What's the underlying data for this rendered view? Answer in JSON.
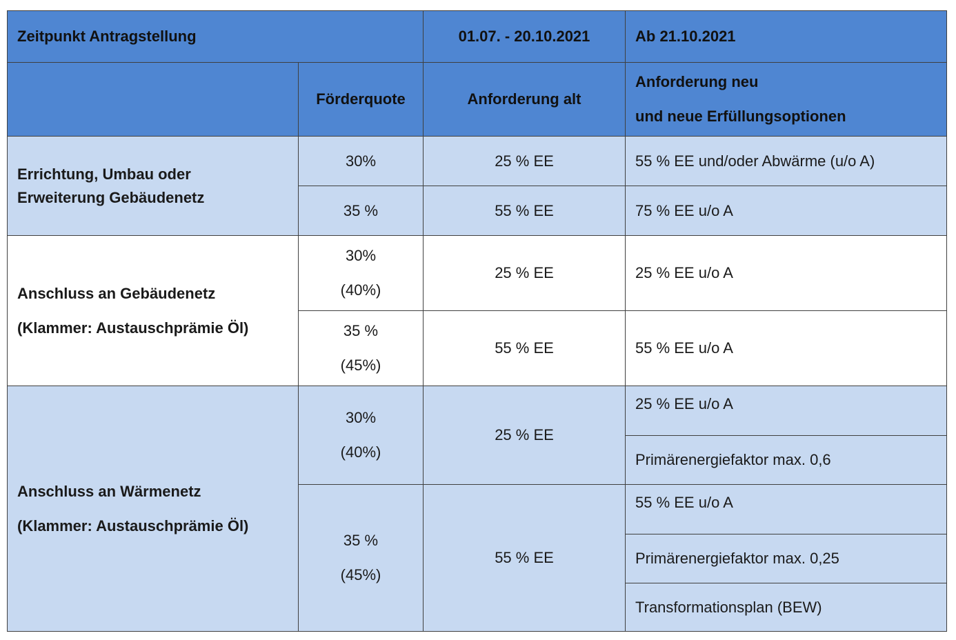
{
  "header": {
    "antrag": "Zeitpunkt Antragstellung",
    "period1": "01.07. - 20.10.2021",
    "period2": "Ab 21.10.2021",
    "quote": "Förderquote",
    "alt": "Anforderung alt",
    "neu_line1": "Anforderung neu",
    "neu_line2": "und neue Erfüllungsoptionen"
  },
  "rows": [
    {
      "label": [
        "Errichtung, Umbau oder",
        "Erweiterung Gebäudenetz"
      ],
      "entries": [
        {
          "quote": [
            "30%"
          ],
          "alt": "25 % EE",
          "neu": [
            "55 % EE und/oder Abwärme (u/o A)"
          ]
        },
        {
          "quote": [
            "35 %"
          ],
          "alt": "55 % EE",
          "neu": [
            "75 % EE u/o A"
          ]
        }
      ]
    },
    {
      "label": [
        "Anschluss an Gebäudenetz",
        "(Klammer: Austauschprämie Öl)"
      ],
      "entries": [
        {
          "quote": [
            "30%",
            "(40%)"
          ],
          "alt": "25 % EE",
          "neu": [
            "25 % EE u/o A"
          ]
        },
        {
          "quote": [
            "35 %",
            "(45%)"
          ],
          "alt": "55 % EE",
          "neu": [
            "55 % EE u/o A"
          ]
        }
      ]
    },
    {
      "label": [
        "Anschluss an Wärmenetz",
        "(Klammer: Austauschprämie Öl)"
      ],
      "entries": [
        {
          "quote": [
            "30%",
            "(40%)"
          ],
          "alt": "25 % EE",
          "neu": [
            "25 % EE u/o A",
            "Primärenergiefaktor max. 0,6"
          ]
        },
        {
          "quote": [
            "35 %",
            "(45%)"
          ],
          "alt": "55 % EE",
          "neu": [
            "55 % EE u/o A",
            "Primärenergiefaktor max. 0,25",
            "Transformationsplan (BEW)"
          ]
        }
      ]
    }
  ]
}
